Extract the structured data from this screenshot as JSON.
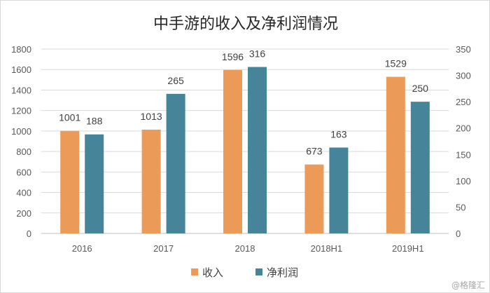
{
  "chart_data": {
    "type": "bar",
    "title": "中手游的收入及净利润情况",
    "categories": [
      "2016",
      "2017",
      "2018",
      "2018H1",
      "2019H1"
    ],
    "series": [
      {
        "name": "收入",
        "axis": "left",
        "color": "#EB9A58",
        "values": [
          1001,
          1013,
          1596,
          673,
          1529
        ]
      },
      {
        "name": "净利润",
        "axis": "right",
        "color": "#468499",
        "values": [
          188,
          265,
          316,
          163,
          250
        ]
      }
    ],
    "y_left": {
      "range": [
        0,
        1800
      ],
      "step": 200
    },
    "y_right": {
      "range": [
        0,
        350
      ],
      "step": 50
    },
    "grid": true,
    "legend_position": "bottom"
  },
  "watermark": "@格隆汇"
}
